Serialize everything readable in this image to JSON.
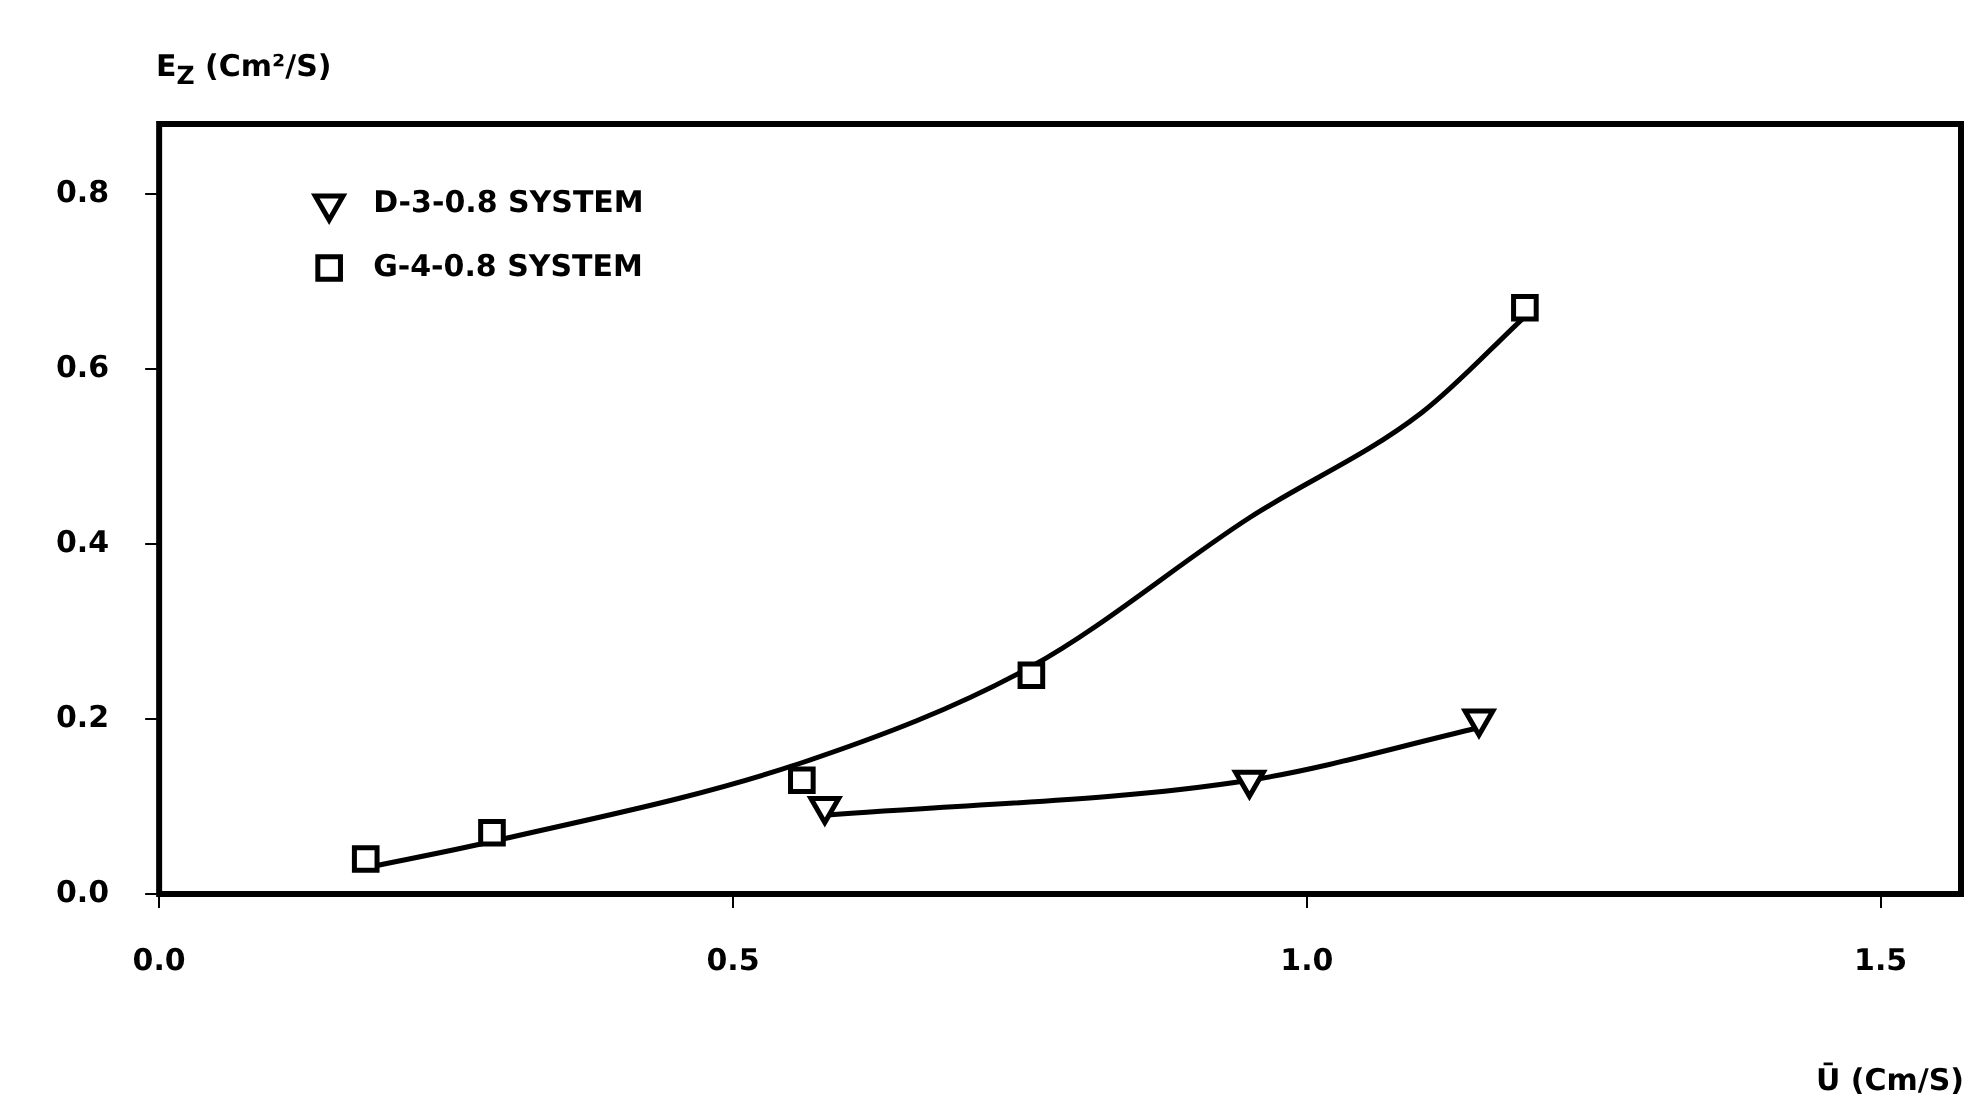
{
  "chart_data": {
    "type": "scatter",
    "xlabel": "Ū (Cm/S)",
    "ylabel": "E$_{Z}$ (Cm²/S)",
    "xlim": [
      0,
      1.57
    ],
    "ylim": [
      0,
      0.88
    ],
    "xticks": [
      {
        "value": 0,
        "label": "0.0"
      },
      {
        "value": 0.5,
        "label": "0.5"
      },
      {
        "value": 1,
        "label": "1.0"
      },
      {
        "value": 1.5,
        "label": "1.5"
      }
    ],
    "yticks": [
      {
        "value": 0,
        "label": "0.0"
      },
      {
        "value": 0.2,
        "label": "0.2"
      },
      {
        "value": 0.4,
        "label": "0.4"
      },
      {
        "value": 0.6,
        "label": "0.6"
      },
      {
        "value": 0.8,
        "label": "0.8"
      }
    ],
    "grid": false,
    "legend": "top left",
    "series": [
      {
        "name": "D-3-0.8 SYSTEM",
        "color": "#000000",
        "marker": "triangle",
        "x": [
          0.58,
          0.95,
          1.15
        ],
        "values": [
          0.1,
          0.13,
          0.2
        ]
      },
      {
        "name": "G-4-0.8 SYSTEM",
        "color": "#000000",
        "marker": "square",
        "x": [
          0.18,
          0.29,
          0.56,
          0.76,
          1.19
        ],
        "values": [
          0.04,
          0.07,
          0.13,
          0.25,
          0.67
        ]
      },
      {
        "type": "line",
        "color": "#000000",
        "marker": "none",
        "x": [
          0.58,
          0.95,
          1.15
        ],
        "values": [
          0.09,
          0.13,
          0.19
        ]
      },
      {
        "type": "line",
        "color": "#000000",
        "marker": "none",
        "x": [
          0.18,
          0.29,
          0.56,
          0.76,
          0.95,
          1.1,
          1.19
        ],
        "values": [
          0.03,
          0.06,
          0.15,
          0.26,
          0.43,
          0.55,
          0.66
        ]
      }
    ]
  }
}
